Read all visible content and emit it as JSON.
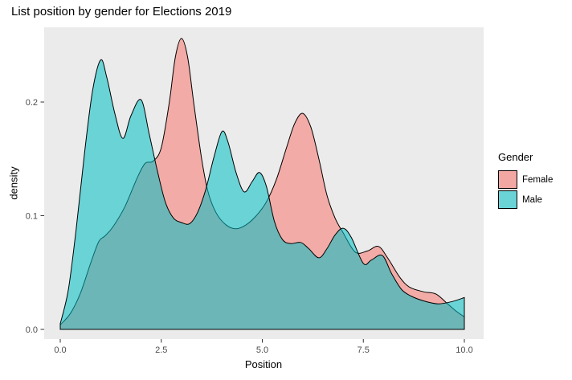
{
  "title": "List position by gender for Elections 2019",
  "chart_data": {
    "type": "area",
    "subtype": "density",
    "title": "List position by gender for Elections 2019",
    "xlabel": "Position",
    "ylabel": "density",
    "xlim": [
      0,
      10
    ],
    "ylim": [
      0,
      0.27
    ],
    "grid": "off",
    "panel_bg": "#EBEBEB",
    "outline_color": "#000000",
    "fill_alpha": 0.55,
    "tick_color": "#333333",
    "tick_label_color": "#4D4D4D",
    "x_ticks": {
      "values": [
        0,
        2.5,
        5,
        7.5,
        10
      ],
      "labels": [
        "0.0",
        "2.5",
        "5.0",
        "7.5",
        "10.0"
      ]
    },
    "y_ticks": {
      "values": [
        0,
        0.1,
        0.2
      ],
      "labels": [
        "0.0",
        "0.1",
        "0.2"
      ]
    },
    "legend": {
      "title": "Gender",
      "position": "right"
    },
    "series": [
      {
        "name": "Female",
        "color": "#F8766D",
        "legend_fill": "#F2A7A3",
        "points": [
          [
            0.0,
            0.004
          ],
          [
            0.25,
            0.014
          ],
          [
            0.5,
            0.032
          ],
          [
            0.75,
            0.058
          ],
          [
            0.95,
            0.077
          ],
          [
            1.1,
            0.082
          ],
          [
            1.3,
            0.09
          ],
          [
            1.6,
            0.108
          ],
          [
            1.9,
            0.133
          ],
          [
            2.1,
            0.146
          ],
          [
            2.3,
            0.148
          ],
          [
            2.5,
            0.16
          ],
          [
            2.7,
            0.2
          ],
          [
            2.85,
            0.24
          ],
          [
            3.0,
            0.256
          ],
          [
            3.15,
            0.24
          ],
          [
            3.3,
            0.2
          ],
          [
            3.5,
            0.15
          ],
          [
            3.65,
            0.122
          ],
          [
            3.85,
            0.103
          ],
          [
            4.1,
            0.092
          ],
          [
            4.35,
            0.0885
          ],
          [
            4.6,
            0.092
          ],
          [
            4.85,
            0.1
          ],
          [
            5.1,
            0.112
          ],
          [
            5.35,
            0.132
          ],
          [
            5.6,
            0.16
          ],
          [
            5.8,
            0.181
          ],
          [
            6.0,
            0.19
          ],
          [
            6.2,
            0.178
          ],
          [
            6.4,
            0.15
          ],
          [
            6.6,
            0.118
          ],
          [
            6.8,
            0.098
          ],
          [
            7.0,
            0.085
          ],
          [
            7.3,
            0.068
          ],
          [
            7.6,
            0.069
          ],
          [
            7.87,
            0.073
          ],
          [
            8.1,
            0.063
          ],
          [
            8.4,
            0.046
          ],
          [
            8.65,
            0.037
          ],
          [
            9.0,
            0.033
          ],
          [
            9.3,
            0.031
          ],
          [
            9.6,
            0.022
          ],
          [
            9.8,
            0.016
          ],
          [
            10.0,
            0.011
          ]
        ]
      },
      {
        "name": "Male",
        "color": "#00BFC4",
        "legend_fill": "#69D3D6",
        "points": [
          [
            0.0,
            0.005
          ],
          [
            0.2,
            0.035
          ],
          [
            0.4,
            0.09
          ],
          [
            0.6,
            0.155
          ],
          [
            0.8,
            0.21
          ],
          [
            1.0,
            0.237
          ],
          [
            1.15,
            0.222
          ],
          [
            1.35,
            0.19
          ],
          [
            1.55,
            0.168
          ],
          [
            1.75,
            0.188
          ],
          [
            2.0,
            0.202
          ],
          [
            2.2,
            0.172
          ],
          [
            2.4,
            0.14
          ],
          [
            2.6,
            0.112
          ],
          [
            2.8,
            0.098
          ],
          [
            3.0,
            0.094
          ],
          [
            3.2,
            0.093
          ],
          [
            3.4,
            0.103
          ],
          [
            3.6,
            0.123
          ],
          [
            3.8,
            0.151
          ],
          [
            4.0,
            0.174
          ],
          [
            4.15,
            0.165
          ],
          [
            4.35,
            0.138
          ],
          [
            4.55,
            0.121
          ],
          [
            4.75,
            0.13
          ],
          [
            4.93,
            0.138
          ],
          [
            5.1,
            0.126
          ],
          [
            5.3,
            0.095
          ],
          [
            5.5,
            0.079
          ],
          [
            5.7,
            0.0755
          ],
          [
            5.95,
            0.0765
          ],
          [
            6.15,
            0.071
          ],
          [
            6.4,
            0.063
          ],
          [
            6.6,
            0.071
          ],
          [
            6.8,
            0.083
          ],
          [
            7.0,
            0.089
          ],
          [
            7.2,
            0.081
          ],
          [
            7.5,
            0.058
          ],
          [
            7.7,
            0.061
          ],
          [
            7.97,
            0.065
          ],
          [
            8.2,
            0.049
          ],
          [
            8.45,
            0.035
          ],
          [
            8.7,
            0.029
          ],
          [
            9.0,
            0.025
          ],
          [
            9.35,
            0.0225
          ],
          [
            9.7,
            0.0245
          ],
          [
            10.0,
            0.028
          ]
        ]
      }
    ]
  }
}
